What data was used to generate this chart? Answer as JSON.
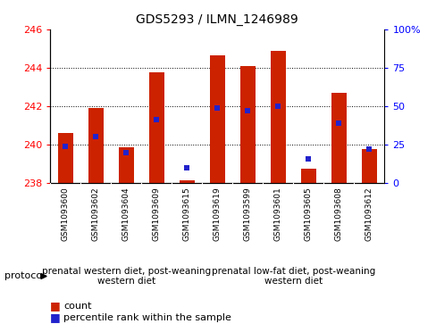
{
  "title": "GDS5293 / ILMN_1246989",
  "samples": [
    "GSM1093600",
    "GSM1093602",
    "GSM1093604",
    "GSM1093609",
    "GSM1093615",
    "GSM1093619",
    "GSM1093599",
    "GSM1093601",
    "GSM1093605",
    "GSM1093608",
    "GSM1093612"
  ],
  "bar_tops": [
    240.6,
    241.9,
    239.85,
    243.75,
    238.15,
    244.65,
    244.1,
    244.85,
    238.75,
    242.7,
    239.75
  ],
  "bar_base": 238.0,
  "percentile_ranks": [
    24,
    30,
    20,
    41,
    10,
    49,
    47,
    50,
    16,
    39,
    22
  ],
  "ylim_left": [
    238,
    246
  ],
  "ylim_right": [
    0,
    100
  ],
  "yticks_left": [
    238,
    240,
    242,
    244,
    246
  ],
  "yticks_right": [
    0,
    25,
    50,
    75,
    100
  ],
  "ytick_labels_right": [
    "0",
    "25",
    "50",
    "75",
    "100%"
  ],
  "bar_color": "#cc2200",
  "marker_color": "#2222cc",
  "group1_label": "prenatal western diet, post-weaning\nwestern diet",
  "group2_label": "prenatal low-fat diet, post-weaning\nwestern diet",
  "group1_count": 5,
  "group2_count": 6,
  "protocol_label": "protocol",
  "legend_count": "count",
  "legend_percentile": "percentile rank within the sample",
  "grid_color": "#000000",
  "group_bg1": "#ccffcc",
  "group_bg2": "#66dd66",
  "sample_bg": "#cccccc",
  "bar_width": 0.5
}
